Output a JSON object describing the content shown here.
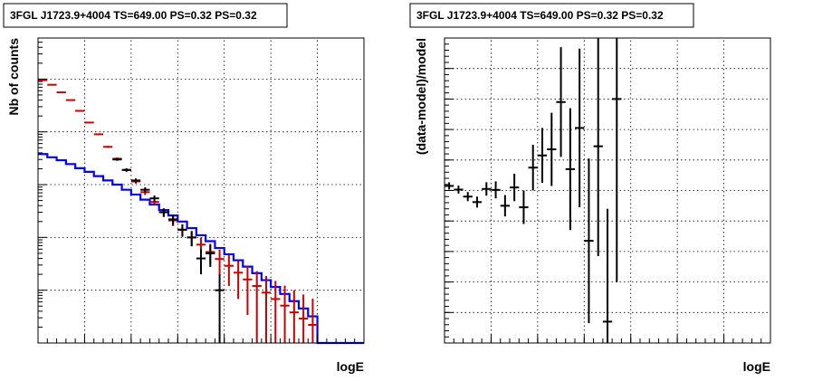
{
  "chart_data": [
    {
      "type": "line",
      "title": "3FGL J1723.9+4004 TS=649.00 PS=0.32 PS=0.32",
      "xlabel": "logE",
      "ylabel": "Nb of counts",
      "xlim": [
        2,
        5.5
      ],
      "ylim": [
        0.1,
        60000
      ],
      "yscale": "log",
      "grid": true,
      "xticks": [
        "2",
        "2.5",
        "3",
        "3.5",
        "4",
        "4.5",
        "5",
        "5.5"
      ],
      "yticks": [
        {
          "value": 0.1,
          "label": "10",
          "exp": "-1"
        },
        {
          "value": 1,
          "label": "1",
          "exp": ""
        },
        {
          "value": 10,
          "label": "10",
          "exp": ""
        },
        {
          "value": 100,
          "label": "10",
          "exp": "2"
        },
        {
          "value": 1000,
          "label": "10",
          "exp": "3"
        },
        {
          "value": 10000,
          "label": "10",
          "exp": "4"
        }
      ],
      "bin_edges": [
        2.0,
        2.1,
        2.2,
        2.3,
        2.4,
        2.5,
        2.6,
        2.7,
        2.8,
        2.9,
        3.0,
        3.1,
        3.2,
        3.3,
        3.4,
        3.5,
        3.6,
        3.7,
        3.8,
        3.9,
        4.0,
        4.1,
        4.2,
        4.3,
        4.4,
        4.5,
        4.6,
        4.7,
        4.8,
        4.9,
        5.0,
        5.1,
        5.2,
        5.3,
        5.4,
        5.5
      ],
      "series": [
        {
          "color": "#0000ff",
          "style": "step",
          "values": [
            380,
            330,
            290,
            245,
            205,
            175,
            145,
            120,
            100,
            80,
            65,
            52,
            42,
            33,
            26,
            20,
            15,
            11,
            8.5,
            6.3,
            4.8,
            3.7,
            2.8,
            2.1,
            1.55,
            1.15,
            0.85,
            0.62,
            0.45,
            0.32,
            0.1,
            0.1,
            0.1,
            0.1,
            0.1
          ]
        },
        {
          "color": "#cc0000",
          "style": "errorbar",
          "x": [
            2.05,
            2.15,
            2.25,
            2.35,
            2.45,
            2.55,
            2.65,
            2.75,
            2.85,
            2.95,
            3.05,
            3.15,
            3.25,
            3.35,
            3.45,
            3.55,
            3.65,
            3.75,
            3.85,
            3.95,
            4.05,
            4.15,
            4.25,
            4.35,
            4.45,
            4.55,
            4.65,
            4.75,
            4.85,
            4.95
          ],
          "y": [
            9500,
            7800,
            5600,
            4000,
            2500,
            1500,
            900,
            520,
            310,
            190,
            115,
            72,
            47,
            30,
            21,
            14,
            10,
            7.3,
            5.3,
            3.9,
            2.9,
            2.15,
            1.6,
            1.2,
            0.9,
            0.68,
            0.51,
            0.38,
            0.29,
            0.22
          ],
          "err": [
            97,
            88,
            75,
            63,
            50,
            39,
            30,
            23,
            18,
            14,
            10.7,
            8.5,
            6.9,
            5.5,
            4.6,
            3.7,
            3.2,
            2.7,
            2.3,
            1.98,
            1.7,
            1.47,
            1.26,
            1.1,
            0.95,
            0.82,
            0.71,
            0.62,
            0.54,
            0.47
          ]
        },
        {
          "color": "#000000",
          "style": "errorbar",
          "x": [
            2.85,
            2.95,
            3.05,
            3.15,
            3.25,
            3.35,
            3.45,
            3.55,
            3.65,
            3.75,
            3.85,
            3.95
          ],
          "y": [
            300,
            190,
            120,
            80,
            55,
            30,
            22,
            14,
            10,
            4,
            5,
            1
          ],
          "err": [
            17.3,
            13.8,
            11,
            8.9,
            7.4,
            5.5,
            4.7,
            3.7,
            3.2,
            2,
            2.24,
            1
          ]
        }
      ]
    },
    {
      "type": "scatter",
      "title": "3FGL J1723.9+4004 TS=649.00 PS=0.32 PS=0.32",
      "xlabel": "logE",
      "ylabel": "(data-model)/model",
      "xlim": [
        2,
        5.5
      ],
      "ylim": [
        -0.5,
        0.5
      ],
      "grid": true,
      "xticks": [
        "2",
        "2.5",
        "3",
        "3.5",
        "4",
        "4.5",
        "5",
        "5.5"
      ],
      "yticks": [
        "−0.5",
        "−0.4",
        "−0.3",
        "−0.2",
        "−0.1",
        "0",
        "0.1",
        "0.2",
        "0.3",
        "0.4",
        "0.5"
      ],
      "series": [
        {
          "color": "#000000",
          "style": "errorbar",
          "x": [
            2.05,
            2.15,
            2.25,
            2.35,
            2.45,
            2.55,
            2.65,
            2.75,
            2.85,
            2.95,
            3.05,
            3.15,
            3.25,
            3.35,
            3.45,
            3.55,
            3.65,
            3.75,
            3.85
          ],
          "y": [
            0.015,
            0.003,
            -0.02,
            -0.038,
            0.005,
            0.002,
            -0.05,
            0.01,
            -0.055,
            0.075,
            0.115,
            0.135,
            0.29,
            0.07,
            0.205,
            -0.165,
            0.145,
            -0.43,
            0.3
          ],
          "err": [
            0.012,
            0.013,
            0.015,
            0.018,
            0.022,
            0.028,
            0.035,
            0.045,
            0.055,
            0.075,
            0.09,
            0.12,
            0.18,
            0.2,
            0.26,
            0.27,
            0.36,
            0.37,
            0.6
          ]
        }
      ]
    }
  ]
}
